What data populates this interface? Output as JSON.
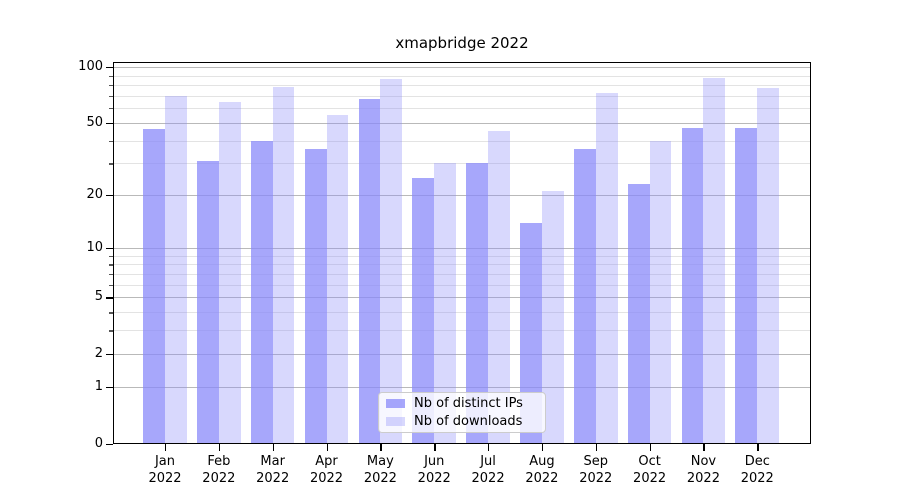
{
  "chart_data": {
    "type": "bar",
    "title": "xmapbridge 2022",
    "categories": [
      "Jan",
      "Feb",
      "Mar",
      "Apr",
      "May",
      "Jun",
      "Jul",
      "Aug",
      "Sep",
      "Oct",
      "Nov",
      "Dec"
    ],
    "category_year": "2022",
    "series": [
      {
        "name": "Nb of distinct IPs",
        "color": "#8989fa",
        "alpha": 0.75,
        "values": [
          46,
          31,
          40,
          36,
          67,
          25,
          30,
          14,
          36,
          23,
          47,
          47
        ]
      },
      {
        "name": "Nb of downloads",
        "color": "#8989fa",
        "alpha": 0.33,
        "values": [
          70,
          65,
          78,
          55,
          86,
          30,
          45,
          21,
          72,
          40,
          87,
          77
        ]
      }
    ],
    "y_axis": {
      "scale": "log10(1+x)",
      "ticks": [
        0,
        1,
        2,
        5,
        10,
        20,
        50,
        100
      ],
      "minor_ticks": [
        3,
        4,
        6,
        7,
        8,
        9,
        30,
        40,
        60,
        70,
        80,
        90
      ],
      "range": [
        0,
        106
      ]
    },
    "xlabel": "",
    "ylabel": "",
    "grid": true,
    "legend_position": "lower center"
  }
}
